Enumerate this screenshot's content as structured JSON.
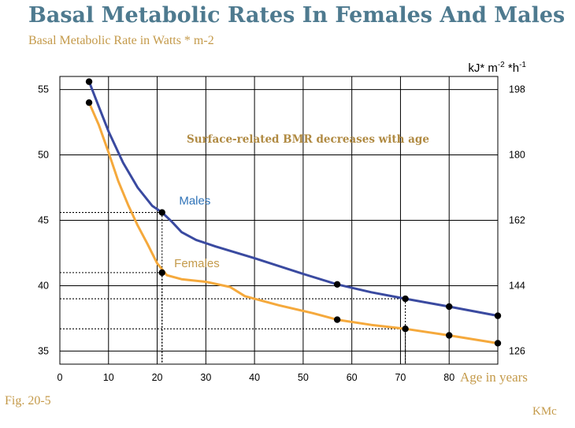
{
  "title": "Basal Metabolic Rates In Females And Males",
  "subtitle": "Basal Metabolic Rate in Watts * m-2",
  "figure_label": "Fig. 20-5",
  "credit": "KMc",
  "colors": {
    "title": "#4e7a8f",
    "accent_text": "#c49a4a",
    "males": "#3a4aa0",
    "females": "#f5a93c",
    "males_label": "#2f73b8",
    "annotation": "#b08a42"
  },
  "chart_data": {
    "type": "line",
    "xlabel": "Age in years",
    "ylabel_right": "kJ* m-2 *h-1",
    "ylabel_right_parts": {
      "base1": "kJ* m",
      "sup1": "-2",
      "base2": " *h",
      "sup2": "-1"
    },
    "xlim": [
      0,
      90
    ],
    "ylim": [
      34,
      56
    ],
    "x_ticks": [
      0,
      10,
      20,
      30,
      40,
      50,
      60,
      70,
      80
    ],
    "y_ticks": [
      35,
      40,
      45,
      50,
      55
    ],
    "y2_ticks": [
      {
        "at": 35,
        "label": "126"
      },
      {
        "at": 40,
        "label": "144"
      },
      {
        "at": 45,
        "label": "162"
      },
      {
        "at": 50,
        "label": "180"
      },
      {
        "at": 55,
        "label": "198"
      }
    ],
    "grid": true,
    "annotation": "Surface-related BMR decreases with age",
    "series": [
      {
        "name": "Males",
        "points": [
          [
            6,
            55.6
          ],
          [
            21,
            45.6
          ],
          [
            57,
            40.1
          ],
          [
            71,
            39
          ],
          [
            80,
            38.4
          ],
          [
            90,
            37.7
          ]
        ],
        "curve": [
          [
            6,
            55.6
          ],
          [
            8,
            53.7
          ],
          [
            10,
            51.8
          ],
          [
            13,
            49.4
          ],
          [
            16,
            47.5
          ],
          [
            19,
            46.1
          ],
          [
            21,
            45.6
          ],
          [
            23,
            44.9
          ],
          [
            25,
            44.1
          ],
          [
            28,
            43.5
          ],
          [
            32,
            43
          ],
          [
            40,
            42.1
          ],
          [
            50,
            40.9
          ],
          [
            57,
            40.1
          ],
          [
            64,
            39.5
          ],
          [
            71,
            39
          ],
          [
            80,
            38.4
          ],
          [
            90,
            37.7
          ]
        ]
      },
      {
        "name": "Females",
        "points": [
          [
            6,
            54
          ],
          [
            21,
            41
          ],
          [
            57,
            37.4
          ],
          [
            71,
            36.7
          ],
          [
            80,
            36.2
          ],
          [
            90,
            35.6
          ]
        ],
        "curve": [
          [
            6,
            54
          ],
          [
            8,
            52.3
          ],
          [
            10,
            50.2
          ],
          [
            12,
            48
          ],
          [
            14,
            46.2
          ],
          [
            16,
            44.6
          ],
          [
            18,
            43.2
          ],
          [
            20,
            41.7
          ],
          [
            22,
            40.8
          ],
          [
            25,
            40.5
          ],
          [
            30,
            40.3
          ],
          [
            35,
            39.9
          ],
          [
            38,
            39.2
          ],
          [
            45,
            38.5
          ],
          [
            52,
            37.9
          ],
          [
            57,
            37.4
          ],
          [
            64,
            37
          ],
          [
            71,
            36.7
          ],
          [
            80,
            36.2
          ],
          [
            90,
            35.6
          ]
        ]
      }
    ],
    "reference_lines": [
      {
        "x": 21,
        "y": 45.6
      },
      {
        "x": 21,
        "y": 41
      },
      {
        "x": 71,
        "y": 39
      },
      {
        "x": 71,
        "y": 36.7
      }
    ]
  }
}
